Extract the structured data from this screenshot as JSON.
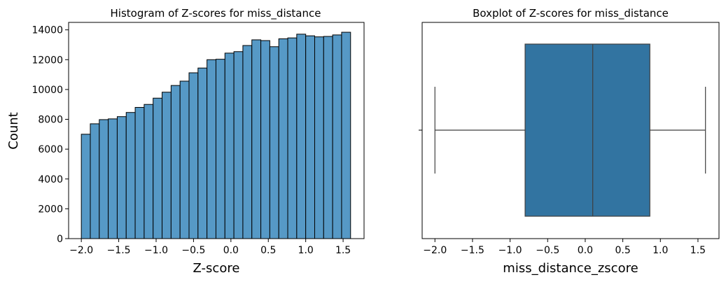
{
  "chart_data": [
    {
      "type": "bar",
      "title": "Histogram of Z-scores for miss_distance",
      "xlabel": "Z-score",
      "ylabel": "Count",
      "xlim": [
        -2.17,
        1.78
      ],
      "ylim": [
        0,
        14500
      ],
      "xticks": [
        -2.0,
        -1.5,
        -1.0,
        -0.5,
        0.0,
        0.5,
        1.0,
        1.5
      ],
      "xtick_labels": [
        "−2.0",
        "−1.5",
        "−1.0",
        "−0.5",
        "0.0",
        "0.5",
        "1.0",
        "1.5"
      ],
      "yticks": [
        0,
        2000,
        4000,
        6000,
        8000,
        10000,
        12000,
        14000
      ],
      "ytick_labels": [
        "0",
        "2000",
        "4000",
        "6000",
        "8000",
        "10000",
        "12000",
        "14000"
      ],
      "bin_start": -2.0,
      "bin_width": 0.12,
      "values": [
        7000,
        7700,
        7980,
        8030,
        8180,
        8460,
        8800,
        9000,
        9420,
        9820,
        10270,
        10560,
        11120,
        11440,
        12000,
        12030,
        12440,
        12540,
        12950,
        13330,
        13280,
        12870,
        13400,
        13460,
        13710,
        13600,
        13530,
        13560,
        13660,
        13840
      ],
      "bar_color": "#5699c6",
      "edge_color": "#000000",
      "grid": false
    },
    {
      "type": "boxplot",
      "title": "Boxplot of Z-scores for miss_distance",
      "xlabel": "miss_distance_zscore",
      "xlim": [
        -2.17,
        1.78
      ],
      "xticks": [
        -2.0,
        -1.5,
        -1.0,
        -0.5,
        0.0,
        0.5,
        1.0,
        1.5
      ],
      "xtick_labels": [
        "−2.0",
        "−1.5",
        "−1.0",
        "−0.5",
        "0.0",
        "0.5",
        "1.0",
        "1.5"
      ],
      "whisker_low": -2.0,
      "q1": -0.8,
      "median": 0.1,
      "q3": 0.86,
      "whisker_high": 1.6,
      "box_color": "#3274a1",
      "line_color": "#3f3f3f",
      "grid": false
    }
  ]
}
